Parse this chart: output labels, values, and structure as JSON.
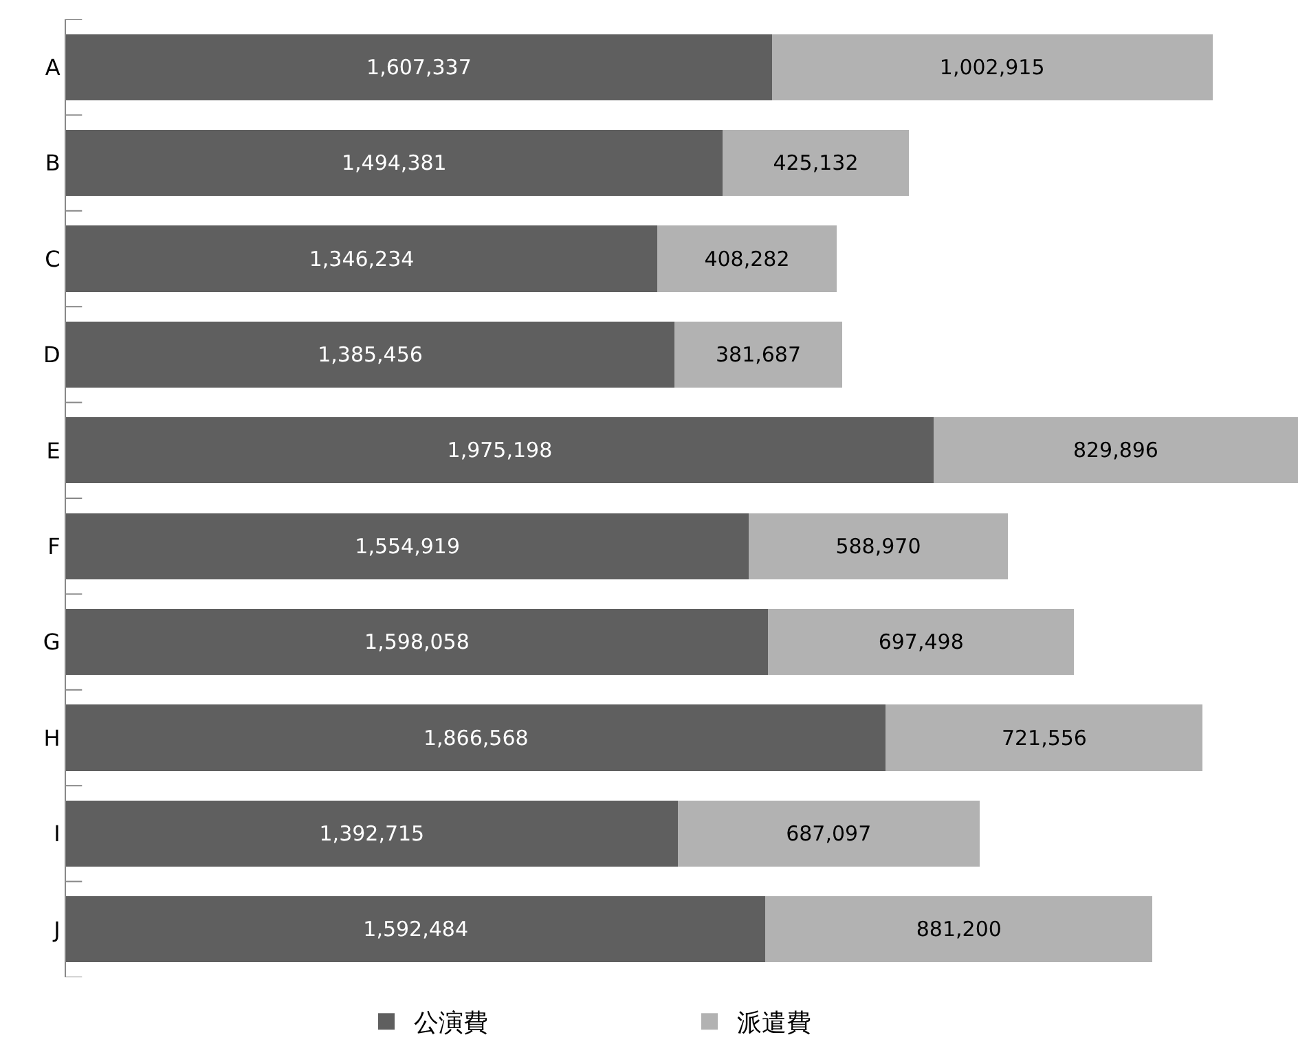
{
  "chart_data": {
    "type": "bar",
    "orientation": "horizontal",
    "stacked": true,
    "legend": "bottom",
    "categories": [
      "A",
      "B",
      "C",
      "D",
      "E",
      "F",
      "G",
      "H",
      "I",
      "J"
    ],
    "series": [
      {
        "name": "公演費",
        "color": "#5f5f5f",
        "values": [
          1607337,
          1494381,
          1346234,
          1385456,
          1975198,
          1554919,
          1598058,
          1866568,
          1392715,
          1592484
        ],
        "value_labels": [
          "1,607,337",
          "1,494,381",
          "1,346,234",
          "1,385,456",
          "1,975,198",
          "1,554,919",
          "1,598,058",
          "1,866,568",
          "1,392,715",
          "1,592,484"
        ]
      },
      {
        "name": "派遣費",
        "color": "#b2b2b2",
        "values": [
          1002915,
          425132,
          408282,
          381687,
          829896,
          588970,
          697498,
          721556,
          687097,
          881200
        ],
        "value_labels": [
          "1,002,915",
          "425,132",
          "408,282",
          "381,687",
          "829,896",
          "588,970",
          "697,498",
          "721,556",
          "687,097",
          "881,200"
        ]
      }
    ]
  }
}
